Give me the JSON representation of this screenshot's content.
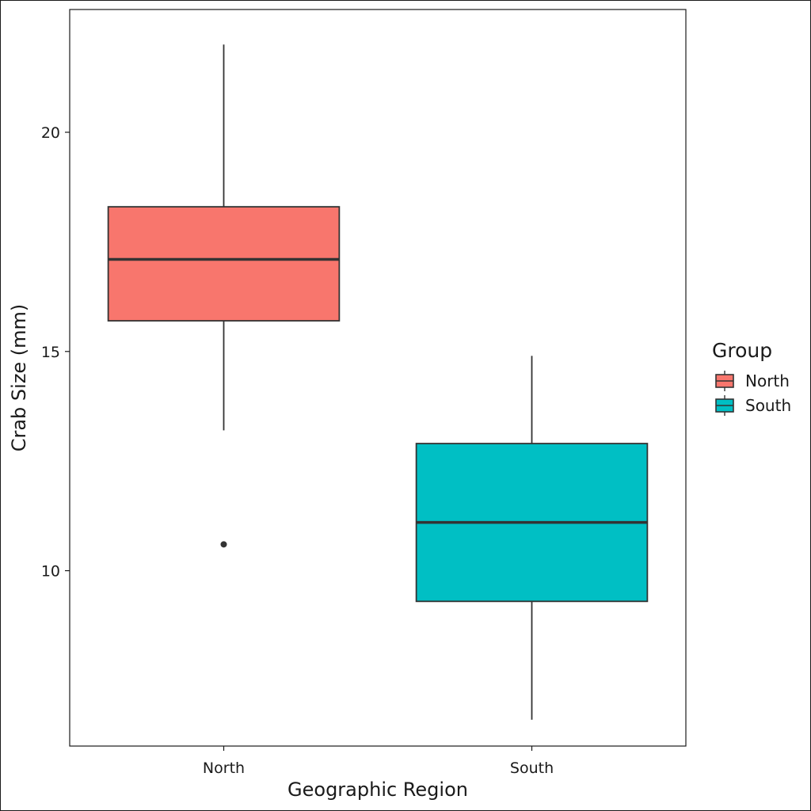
{
  "chart_data": {
    "type": "box",
    "title": "",
    "xlabel": "Geographic Region",
    "ylabel": "Crab Size (mm)",
    "ylim": [
      6.0,
      22.8
    ],
    "yticks": [
      10,
      15,
      20
    ],
    "categories": [
      "North",
      "South"
    ],
    "boxes": [
      {
        "category": "North",
        "whisker_low": 13.2,
        "q1": 15.7,
        "median": 17.1,
        "q3": 18.3,
        "whisker_high": 22.0,
        "outliers": [
          10.6
        ],
        "color": "#F8766D"
      },
      {
        "category": "South",
        "whisker_low": 6.6,
        "q1": 9.3,
        "median": 11.1,
        "q3": 12.9,
        "whisker_high": 14.9,
        "outliers": [],
        "color": "#00BFC4"
      }
    ],
    "legend": {
      "title": "Group",
      "position": "right",
      "items": [
        {
          "label": "North",
          "color": "#F8766D"
        },
        {
          "label": "South",
          "color": "#00BFC4"
        }
      ]
    },
    "grid": false
  }
}
